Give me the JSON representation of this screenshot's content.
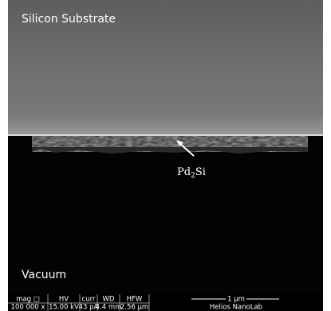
{
  "labels": {
    "top": "Silicon Substrate",
    "bottom": "Vacuum",
    "layer": {
      "base": "Pd",
      "subscript": "2",
      "rest": "Si"
    }
  },
  "info_bar": {
    "headers": [
      "mag □",
      "HV",
      "curr",
      "WD",
      "HFW"
    ],
    "values": [
      "100 000 x",
      "15.00 kV",
      "43 pA",
      "4.4 mm",
      "2.56 µm"
    ],
    "scale": "1 µm",
    "instrument": "Helios NanoLab"
  }
}
